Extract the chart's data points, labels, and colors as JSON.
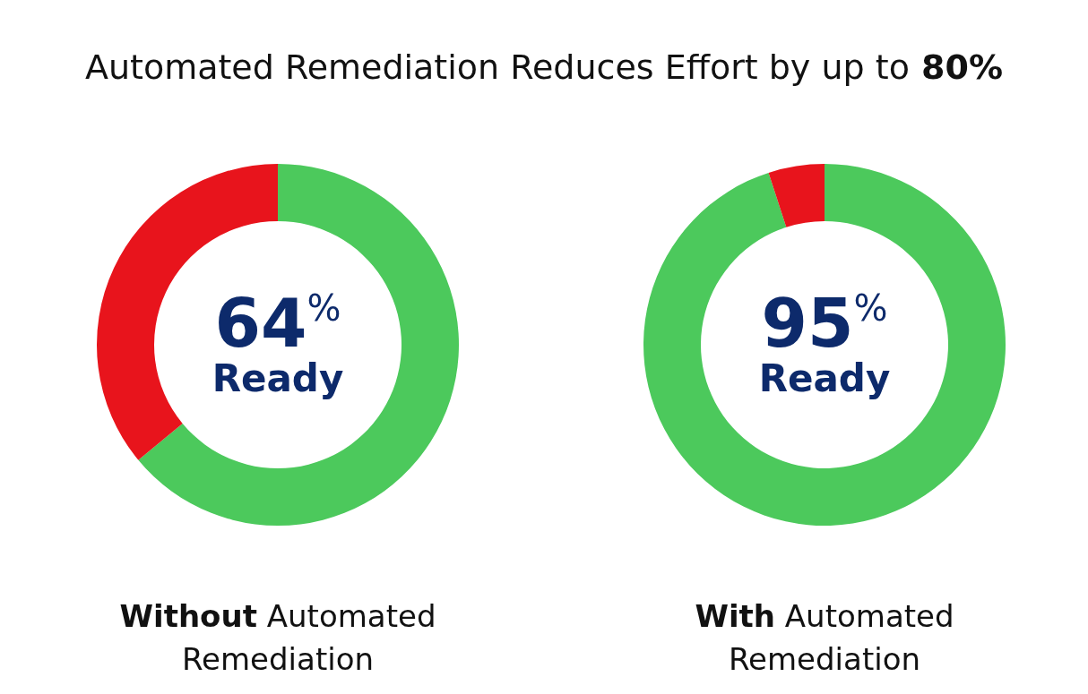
{
  "chart_data": [
    {
      "type": "donut",
      "title": "Automated Remediation Reduces Effort by up to 80%",
      "xlabel": "Without Automated Remediation",
      "categories": [
        "Ready",
        null
      ],
      "values": [
        64,
        36
      ],
      "colors": [
        "#4cc95c",
        "#e8141c"
      ],
      "value_labels": [
        "64$^{%}$",
        null
      ]
    },
    {
      "type": "donut",
      "xlabel": "With Automated Remediation",
      "categories": [
        "Ready",
        null
      ],
      "values": [
        95,
        5
      ],
      "colors": [
        "#4cc95c",
        "#e8141c"
      ],
      "value_labels": [
        "95$^{%}$",
        null
      ]
    }
  ]
}
